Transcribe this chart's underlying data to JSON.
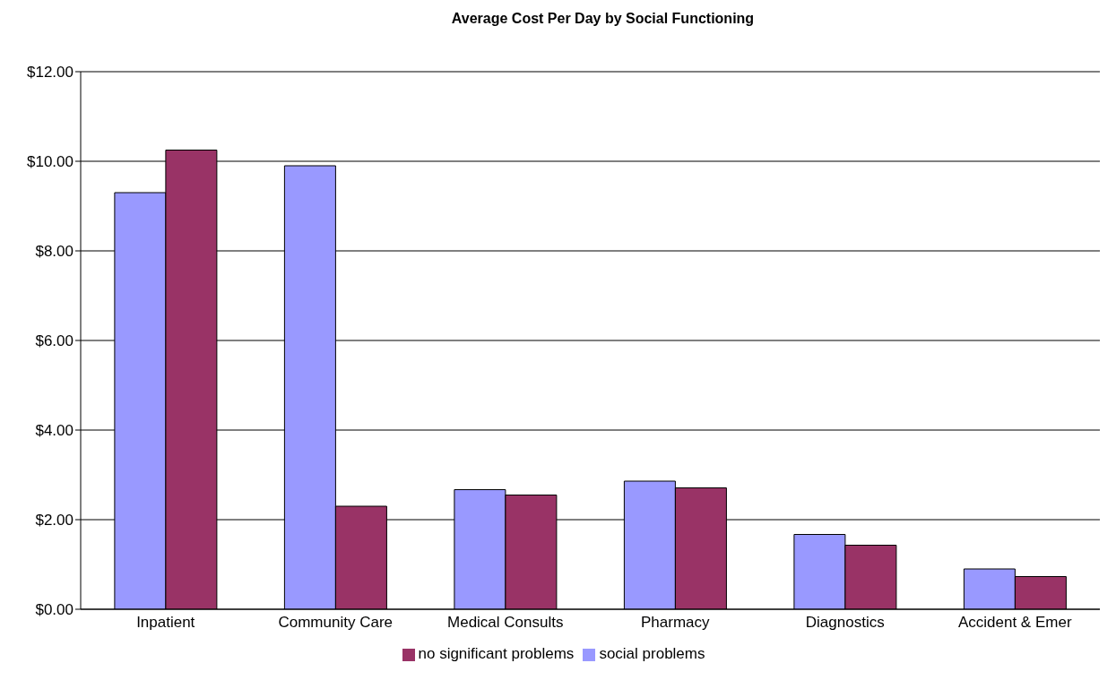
{
  "chart_data": {
    "type": "bar",
    "title": "Average Cost Per Day by Social Functioning",
    "categories": [
      "Inpatient",
      "Community Care",
      "Medical Consults",
      "Pharmacy",
      "Diagnostics",
      "Accident & Emer"
    ],
    "series": [
      {
        "name": "social problems",
        "color": "#9999ff",
        "values": [
          9.3,
          9.9,
          2.67,
          2.86,
          1.67,
          0.9
        ]
      },
      {
        "name": "no significant problems",
        "color": "#993366",
        "values": [
          10.25,
          2.3,
          2.55,
          2.71,
          1.43,
          0.73
        ]
      }
    ],
    "ylim": [
      0,
      12
    ],
    "yticks": [
      {
        "value": 0,
        "label": "$0.00"
      },
      {
        "value": 2,
        "label": "$2.00"
      },
      {
        "value": 4,
        "label": "$4.00"
      },
      {
        "value": 6,
        "label": "$6.00"
      },
      {
        "value": 8,
        "label": "$8.00"
      },
      {
        "value": 10,
        "label": "$10.00"
      },
      {
        "value": 12,
        "label": "$12.00"
      }
    ],
    "grid": "y",
    "legend": "bottom"
  }
}
